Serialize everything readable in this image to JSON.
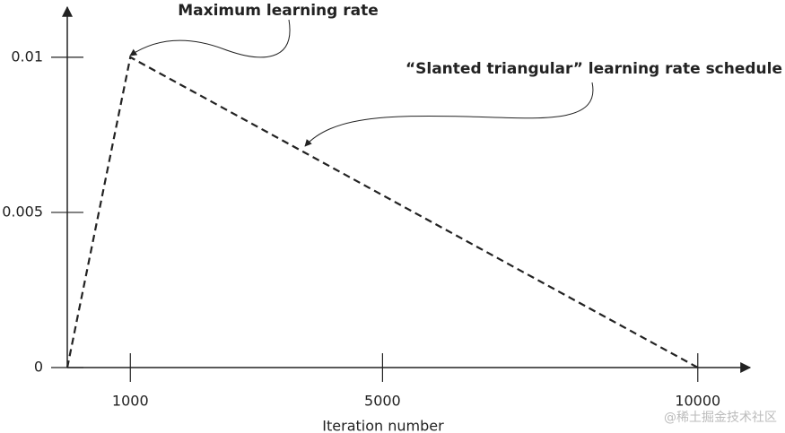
{
  "chart_data": {
    "type": "line",
    "x_label": "Iteration number",
    "x": [
      0,
      1000,
      10000
    ],
    "values": [
      0,
      0.01,
      0
    ],
    "color": "#222222",
    "xlim": [
      0,
      10800
    ],
    "xticks": [
      1000,
      5000,
      10000
    ],
    "ylim": [
      0,
      0.0117
    ],
    "yticks": [
      0,
      0.005,
      0.01
    ],
    "annotations": [
      "Maximum learning rate",
      "“Slanted triangular” learning rate schedule"
    ],
    "watermark": "@稀土掘金技术社区"
  }
}
